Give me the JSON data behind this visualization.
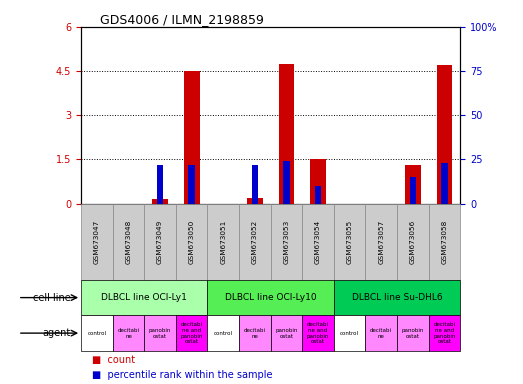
{
  "title": "GDS4006 / ILMN_2198859",
  "samples": [
    "GSM673047",
    "GSM673048",
    "GSM673049",
    "GSM673050",
    "GSM673051",
    "GSM673052",
    "GSM673053",
    "GSM673054",
    "GSM673055",
    "GSM673057",
    "GSM673056",
    "GSM673058"
  ],
  "count_values": [
    0,
    0,
    0.15,
    4.5,
    0,
    0.2,
    4.75,
    1.5,
    0,
    0,
    1.3,
    4.7
  ],
  "percentile_values": [
    0,
    0,
    22,
    22,
    0,
    22,
    24,
    10,
    0,
    0,
    15,
    23
  ],
  "ylim_left": [
    0,
    6
  ],
  "ylim_right": [
    0,
    100
  ],
  "yticks_left": [
    0,
    1.5,
    3,
    4.5,
    6
  ],
  "yticks_right": [
    0,
    25,
    50,
    75,
    100
  ],
  "ytick_labels_left": [
    "0",
    "1.5",
    "3",
    "4.5",
    "6"
  ],
  "ytick_labels_right": [
    "0",
    "25",
    "50",
    "75",
    "100%"
  ],
  "cell_groups": [
    {
      "label": "DLBCL line OCI-Ly1",
      "start": 0,
      "end": 3,
      "color": "#aaffaa"
    },
    {
      "label": "DLBCL line OCI-Ly10",
      "start": 4,
      "end": 7,
      "color": "#55ee55"
    },
    {
      "label": "DLBCL line Su-DHL6",
      "start": 8,
      "end": 11,
      "color": "#00cc55"
    }
  ],
  "agents": [
    "control",
    "decitabi-\nne",
    "panobin-\nostat",
    "decitabi-\nne and\npanobin-\nostat",
    "control",
    "decitabi-\nne",
    "panobin-\nostat",
    "decitabi-\nne and\npanobin-\nostat",
    "control",
    "decitabi-\nne",
    "panobin-\nostat",
    "decitabi-\nne and\npanobin-\nostat"
  ],
  "agent_text": [
    "control",
    "decitabi\nne",
    "panobin\nostat",
    "decitabi\nne and\npanobin\nostat",
    "control",
    "decitabi\nne",
    "panobin\nostat",
    "decitabi\nne and\npanobin\nostat",
    "control",
    "decitabi\nne",
    "panobin\nostat",
    "decitabi\nne and\npanobin\nostat"
  ],
  "agent_colors": [
    "#ffffff",
    "#ff88ff",
    "#ff88ff",
    "#ff00ff",
    "#ffffff",
    "#ff88ff",
    "#ff88ff",
    "#ff00ff",
    "#ffffff",
    "#ff88ff",
    "#ff88ff",
    "#ff00ff"
  ],
  "bar_color_count": "#cc0000",
  "bar_color_percentile": "#0000cc",
  "left_tick_color": "#cc0000",
  "right_tick_color": "#0000cc",
  "gsm_bg_color": "#cccccc",
  "gsm_border_color": "#888888"
}
